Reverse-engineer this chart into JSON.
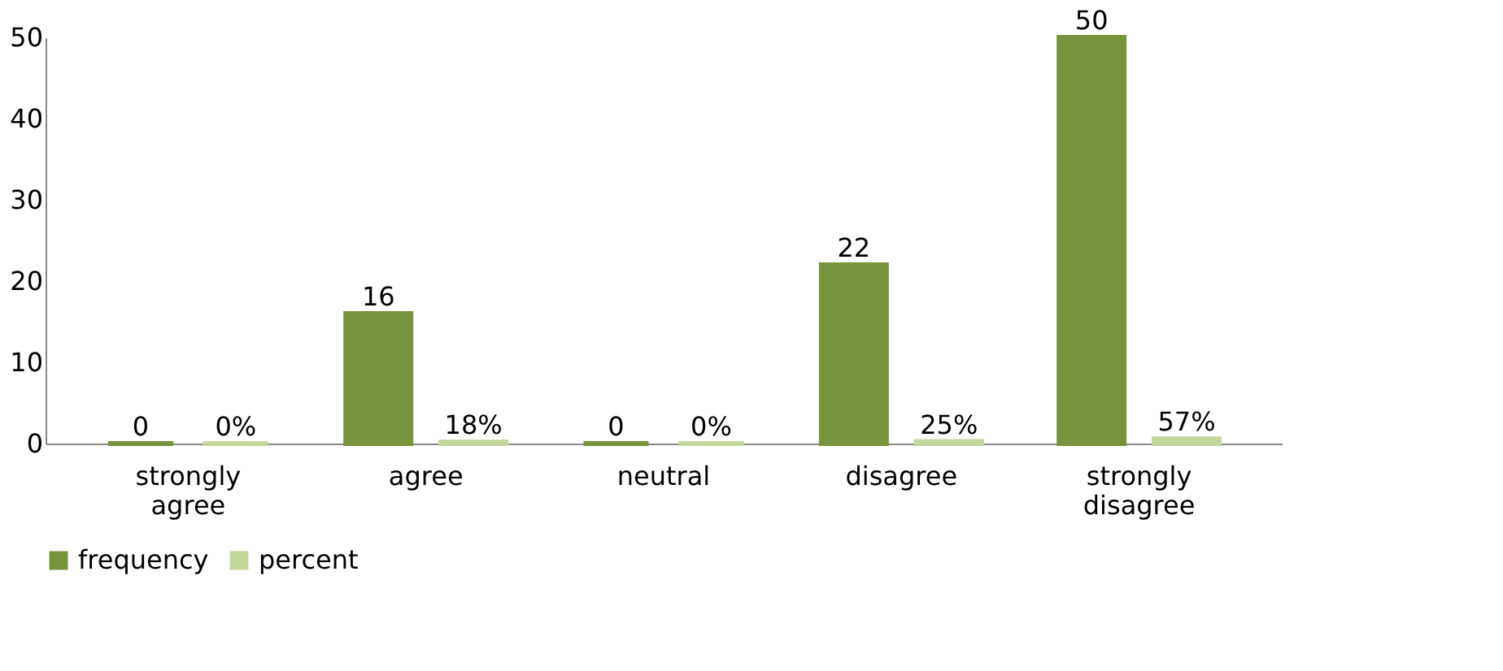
{
  "chart_data": {
    "type": "bar",
    "categories": [
      "strongly agree",
      "agree",
      "neutral",
      "disagree",
      "strongly disagree"
    ],
    "series": [
      {
        "name": "frequency",
        "color": "#77933c",
        "values": [
          0,
          16,
          0,
          22,
          50
        ],
        "value_labels": [
          "0",
          "16",
          "0",
          "22",
          "50"
        ]
      },
      {
        "name": "percent",
        "color": "#c3d69b",
        "values": [
          0,
          0.18,
          0,
          0.25,
          0.57
        ],
        "value_labels": [
          "0%",
          "18%",
          "0%",
          "25%",
          "57%"
        ]
      }
    ],
    "ylim": [
      0,
      50
    ],
    "yticks": [
      0,
      10,
      20,
      30,
      40,
      50
    ],
    "grid": false,
    "legend": "bottom"
  }
}
